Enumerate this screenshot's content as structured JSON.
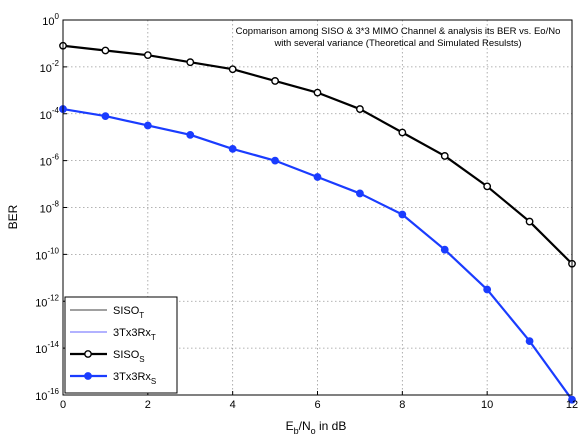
{
  "chart_data": {
    "type": "line",
    "title_lines": [
      "Copmarison among SISO & 3*3 MIMO Channel & analysis its BER vs. Eo/No",
      "with several variance (Theoretical and Simulated Resulsts)"
    ],
    "xlabel": "E_b/N_o in dB",
    "ylabel": "BER",
    "xlim": [
      0,
      12
    ],
    "y_log_exponent_lim": [
      -16,
      0
    ],
    "y_scale": "log",
    "grid": true,
    "legend_placement": "bottom-left",
    "x": [
      0,
      1,
      2,
      3,
      4,
      5,
      6,
      7,
      8,
      9,
      10,
      11,
      12
    ],
    "series": [
      {
        "name": "SISO_T",
        "name_base": "SISO",
        "name_sub": "T",
        "color": "#000000",
        "marker": "none",
        "line_width": 0.8,
        "log10_values": [
          -1.1,
          -1.3,
          -1.5,
          -1.8,
          -2.1,
          -2.6,
          -3.1,
          -3.8,
          -4.8,
          -5.8,
          -7.1,
          -8.6,
          -10.4
        ]
      },
      {
        "name": "3Tx3Rx_T",
        "name_base": "3Tx3Rx",
        "name_sub": "T",
        "color": "#3333ff",
        "marker": "none",
        "line_width": 0.8,
        "log10_values": [
          -3.8,
          -4.1,
          -4.5,
          -4.9,
          -5.5,
          -6.0,
          -6.7,
          -7.4,
          -8.3,
          -9.8,
          -11.5,
          -13.7,
          -16.2
        ]
      },
      {
        "name": "SISO_S",
        "name_base": "SISO",
        "name_sub": "S",
        "color": "#000000",
        "marker": "circle",
        "line_width": 2.2,
        "log10_values": [
          -1.1,
          -1.3,
          -1.5,
          -1.8,
          -2.1,
          -2.6,
          -3.1,
          -3.8,
          -4.8,
          -5.8,
          -7.1,
          -8.6,
          -10.4
        ]
      },
      {
        "name": "3Tx3Rx_S",
        "name_base": "3Tx3Rx",
        "name_sub": "S",
        "color": "#1a3cff",
        "marker": "filled-circle",
        "line_width": 2.2,
        "log10_values": [
          -3.8,
          -4.1,
          -4.5,
          -4.9,
          -5.5,
          -6.0,
          -6.7,
          -7.4,
          -8.3,
          -9.8,
          -11.5,
          -13.7,
          -16.2
        ]
      }
    ],
    "x_ticks": [
      "0",
      "2",
      "4",
      "6",
      "8",
      "10",
      "12"
    ],
    "y_tick_exponents": [
      "0",
      "-2",
      "-4",
      "-6",
      "-8",
      "-10",
      "-12",
      "-14",
      "-16"
    ]
  }
}
